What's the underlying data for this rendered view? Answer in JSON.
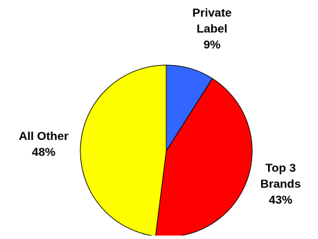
{
  "chart_data": {
    "type": "pie",
    "slices": [
      {
        "label_lines": [
          "Private",
          "Label"
        ],
        "value": 9,
        "value_label": "9%",
        "color": "#3366FF"
      },
      {
        "label_lines": [
          "Top 3",
          "Brands"
        ],
        "value": 43,
        "value_label": "43%",
        "color": "#FF0000"
      },
      {
        "label_lines": [
          "All Other"
        ],
        "value": 48,
        "value_label": "48%",
        "color": "#FFFF00"
      }
    ],
    "start_angle_deg": 0,
    "direction": "clockwise",
    "outline_color": "#000000"
  }
}
